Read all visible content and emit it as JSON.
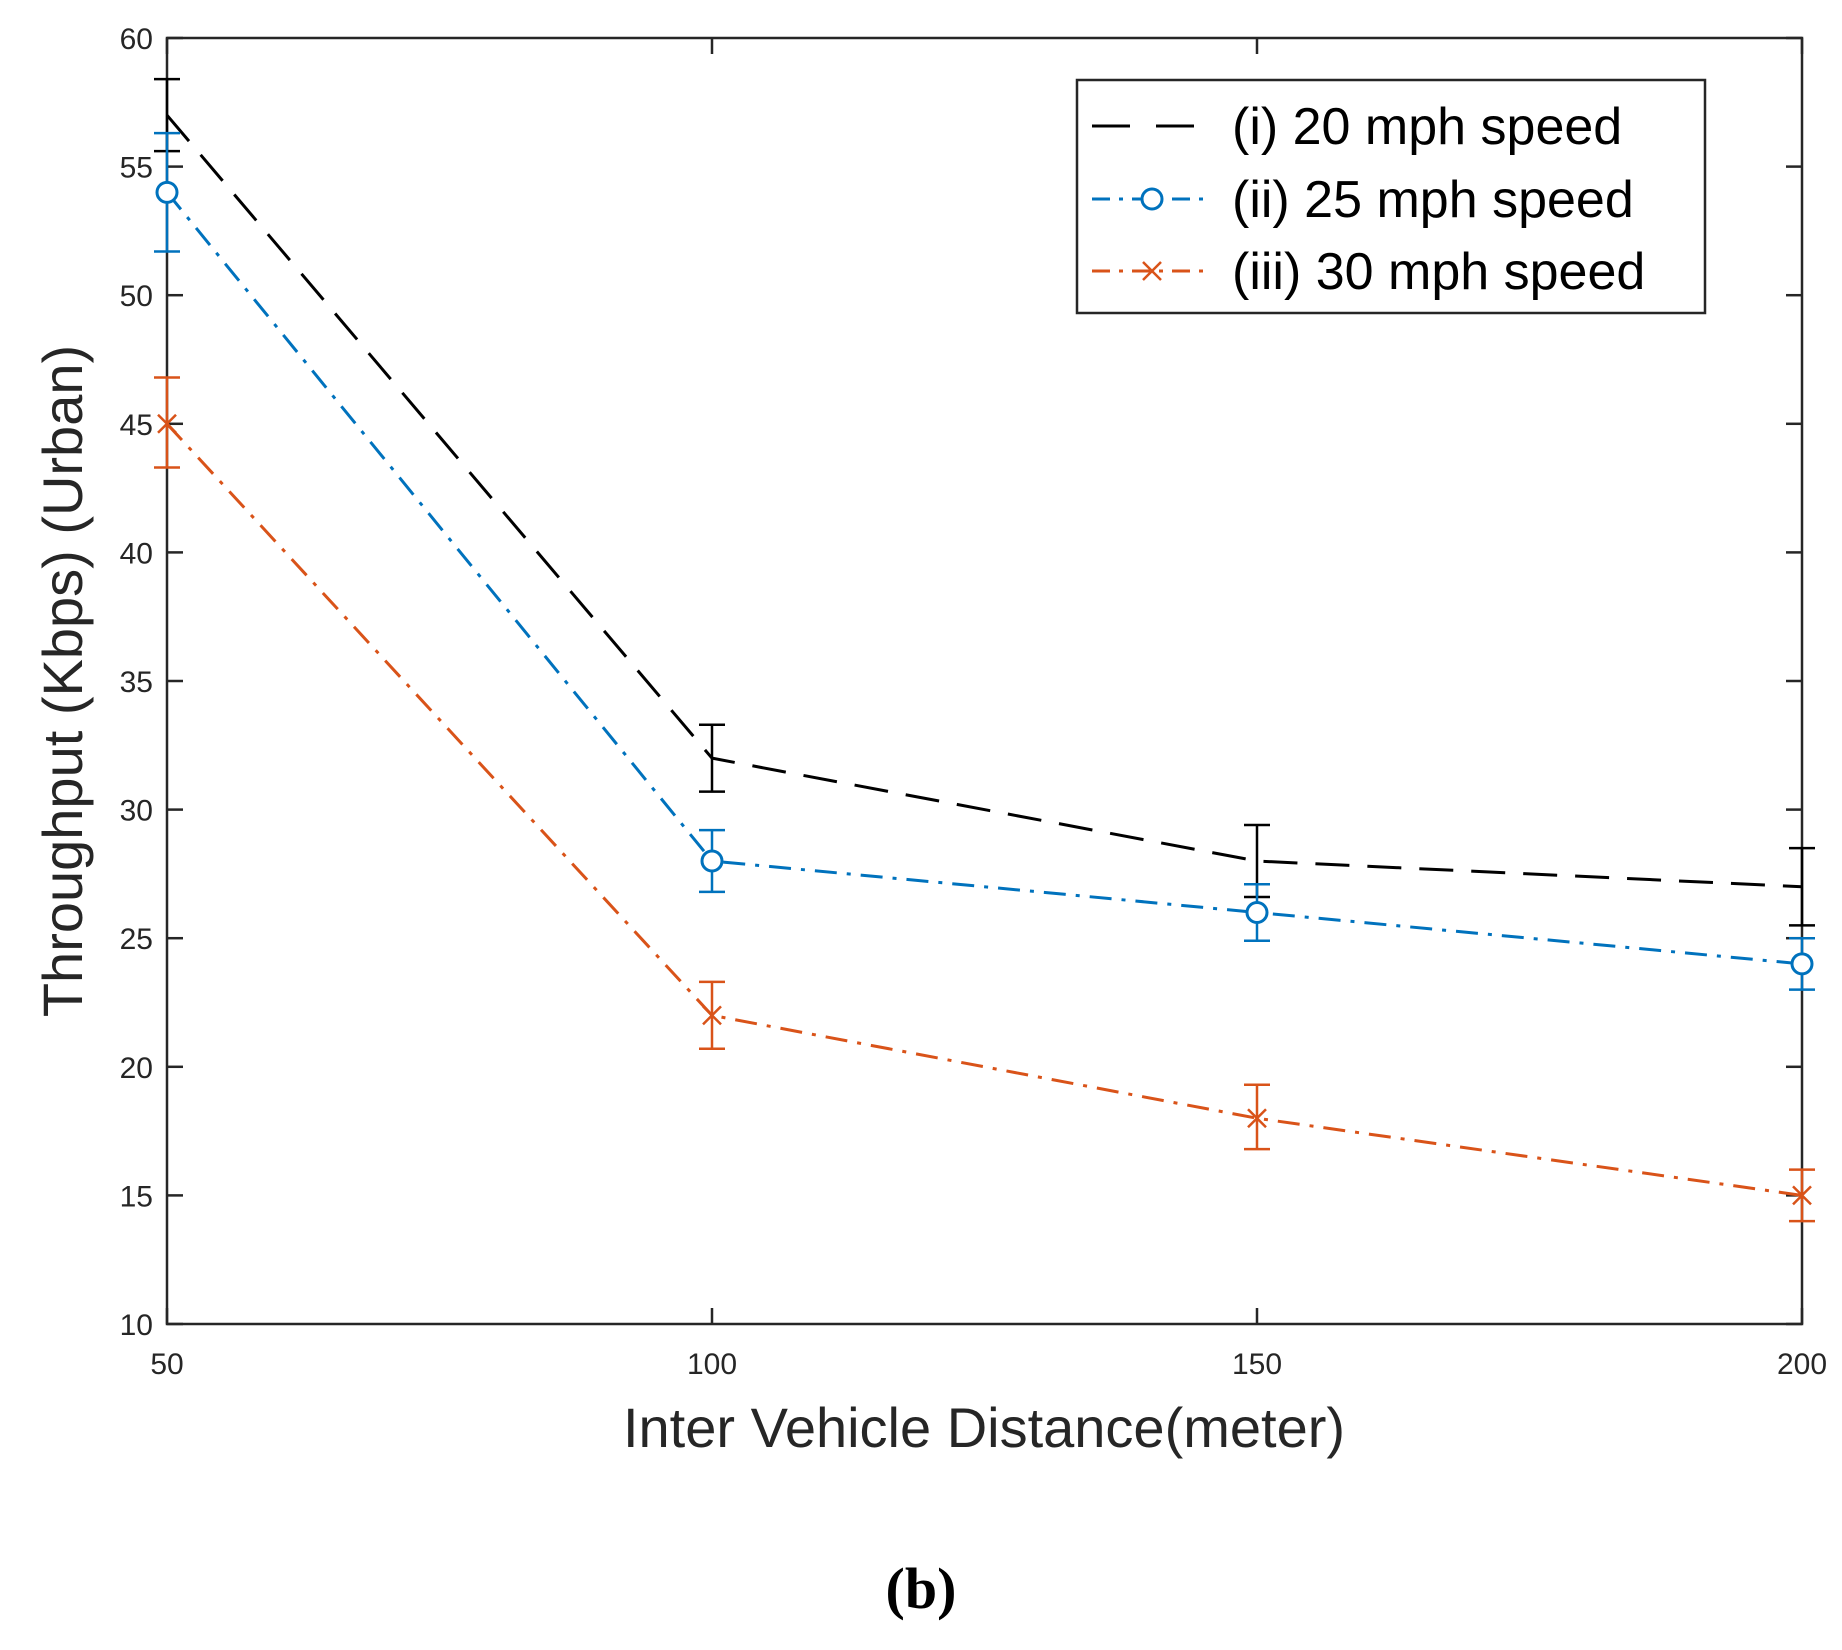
{
  "chart_data": {
    "type": "line",
    "title": "",
    "xlabel": "Inter Vehicle Distance(meter)",
    "ylabel": "Throughput (Kbps) (Urban)",
    "x": [
      50,
      100,
      150,
      200
    ],
    "xlim": [
      50,
      200
    ],
    "ylim": [
      10,
      60
    ],
    "xticks": [
      50,
      100,
      150,
      200
    ],
    "yticks": [
      10,
      15,
      20,
      25,
      30,
      35,
      40,
      45,
      50,
      55,
      60
    ],
    "grid": false,
    "legend_position": "top-right",
    "series": [
      {
        "name": "(i) 20 mph speed",
        "values": [
          57,
          32,
          28,
          27
        ],
        "error_low": [
          55.6,
          30.7,
          26.6,
          25.5
        ],
        "error_high": [
          58.4,
          33.3,
          29.4,
          28.5
        ],
        "color": "#000000",
        "line_style": "dashed",
        "marker": "none"
      },
      {
        "name": "(ii) 25 mph speed",
        "values": [
          54,
          28,
          26,
          24
        ],
        "error_low": [
          51.7,
          26.8,
          24.9,
          23
        ],
        "error_high": [
          56.3,
          29.2,
          27.1,
          25
        ],
        "color": "#0072BD",
        "line_style": "dash-dot",
        "marker": "circle"
      },
      {
        "name": "(iii) 30 mph speed",
        "values": [
          45,
          22,
          18,
          15
        ],
        "error_low": [
          43.3,
          20.7,
          16.8,
          14
        ],
        "error_high": [
          46.8,
          23.3,
          19.3,
          16
        ],
        "color": "#D95319",
        "line_style": "dash-dot",
        "marker": "x"
      }
    ]
  },
  "caption": "(b)"
}
